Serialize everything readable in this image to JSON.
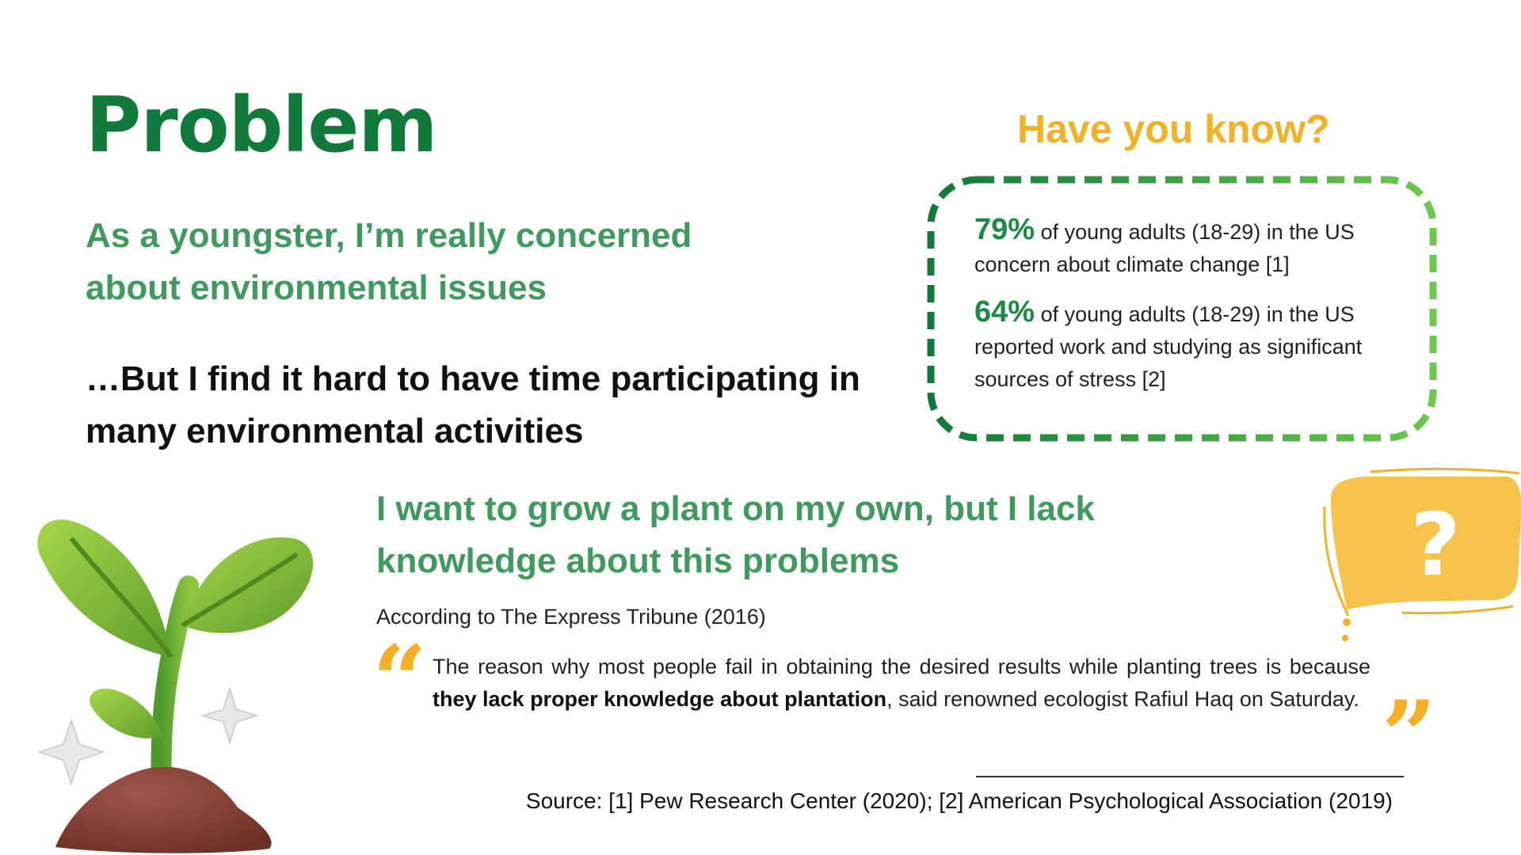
{
  "title": "Problem",
  "concern": "As a youngster, I’m really concerned about environmental issues",
  "hard": "…But I find it hard to have time participating in many environmental activities",
  "knowledge": "I want to grow a plant on my own, but I lack knowledge about this problems",
  "according": "According to The Express Tribune (2016)",
  "quote": {
    "before": "The reason why most people fail in obtaining the desired results while planting trees is because ",
    "bold": "they lack proper knowledge about plantation",
    "after": ", said renowned ecologist Rafiul Haq on Saturday."
  },
  "source": "Source: [1] Pew Research Center (2020); [2] American Psychological Association (2019)",
  "know_box": {
    "title": "Have you know?",
    "stats": [
      {
        "pct": "79%",
        "text": " of young adults (18-29) in the US concern about climate change [1]"
      },
      {
        "pct": "64%",
        "text": " of young adults (18-29) in the US reported work and studying as significant sources of stress [2]"
      }
    ]
  },
  "colors": {
    "dark_green": "#0f7a3a",
    "mid_green": "#3f9a5e",
    "accent_yellow": "#f4b124",
    "light_green": "#6cc94c"
  },
  "icons": {
    "plant": "sprout-illustration",
    "question_bubble": "question-bubble-icon",
    "open_quote": "open-quote-icon",
    "close_quote": "close-quote-icon"
  }
}
